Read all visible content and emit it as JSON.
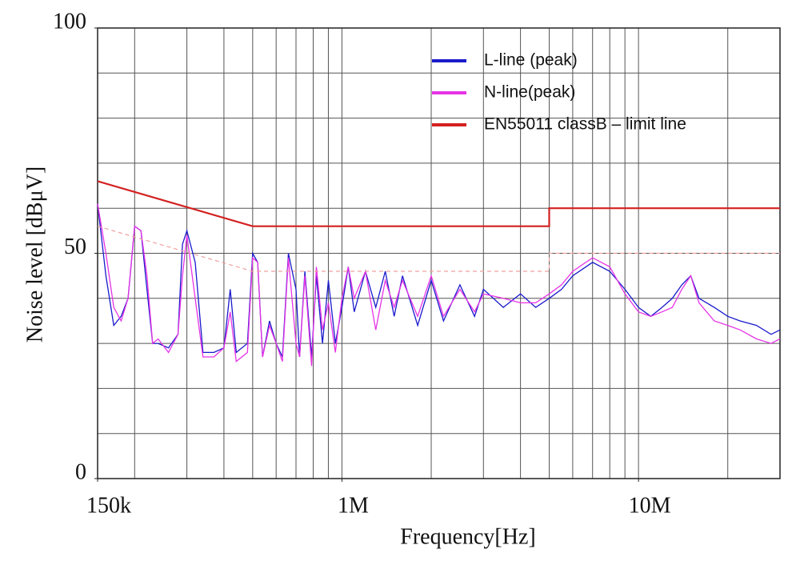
{
  "chart_data": {
    "type": "line",
    "xlabel": "Frequency[Hz]",
    "ylabel": "Noise level [dBμV]",
    "xscale": "log",
    "xlim": [
      150000,
      30000000
    ],
    "ylim": [
      0,
      100
    ],
    "xticks": [
      {
        "value": 150000,
        "label": "150k"
      },
      {
        "value": 1000000,
        "label": "1M"
      },
      {
        "value": 10000000,
        "label": "10M"
      }
    ],
    "yticks": [
      0,
      50,
      100
    ],
    "xgrid": [
      200000,
      300000,
      400000,
      500000,
      600000,
      700000,
      800000,
      900000,
      1000000,
      2000000,
      3000000,
      4000000,
      5000000,
      6000000,
      7000000,
      8000000,
      9000000,
      10000000,
      20000000,
      30000000
    ],
    "ygrid": [
      10,
      20,
      30,
      40,
      50,
      60,
      70,
      80,
      90,
      100
    ],
    "grid": true,
    "legend": "upper right",
    "series": [
      {
        "name": "L-line (peak)",
        "color": "#1a1acc",
        "x": [
          150000,
          160000,
          170000,
          180000,
          190000,
          200000,
          210000,
          220000,
          230000,
          240000,
          260000,
          280000,
          290000,
          300000,
          320000,
          340000,
          370000,
          400000,
          420000,
          440000,
          480000,
          500000,
          520000,
          540000,
          570000,
          600000,
          630000,
          660000,
          700000,
          720000,
          750000,
          790000,
          820000,
          860000,
          900000,
          950000,
          1000000,
          1050000,
          1100000,
          1200000,
          1300000,
          1400000,
          1500000,
          1600000,
          1800000,
          2000000,
          2200000,
          2500000,
          2800000,
          3000000,
          3500000,
          4000000,
          4500000,
          5000000,
          5500000,
          6000000,
          7000000,
          8000000,
          9000000,
          10000000,
          11000000,
          12000000,
          13000000,
          14000000,
          15000000,
          16000000,
          18000000,
          20000000,
          22000000,
          25000000,
          28000000,
          30000000
        ],
        "values": [
          61,
          45,
          34,
          36,
          40,
          56,
          55,
          42,
          30,
          30,
          29,
          32,
          52,
          55,
          48,
          28,
          28,
          29,
          42,
          28,
          30,
          50,
          48,
          27,
          35,
          30,
          27,
          50,
          42,
          27,
          46,
          27,
          45,
          30,
          44,
          30,
          38,
          47,
          37,
          46,
          38,
          46,
          36,
          45,
          34,
          44,
          35,
          43,
          36,
          42,
          38,
          41,
          38,
          40,
          42,
          45,
          48,
          46,
          42,
          38,
          36,
          38,
          40,
          43,
          45,
          40,
          38,
          36,
          35,
          34,
          32,
          33
        ]
      },
      {
        "name": "N-line(peak)",
        "color": "#e633e6",
        "x": [
          150000,
          160000,
          170000,
          180000,
          190000,
          200000,
          210000,
          220000,
          230000,
          240000,
          260000,
          280000,
          290000,
          300000,
          320000,
          340000,
          370000,
          400000,
          420000,
          440000,
          480000,
          500000,
          520000,
          540000,
          570000,
          600000,
          630000,
          660000,
          700000,
          720000,
          750000,
          790000,
          820000,
          860000,
          900000,
          950000,
          1000000,
          1050000,
          1100000,
          1200000,
          1300000,
          1400000,
          1500000,
          1600000,
          1800000,
          2000000,
          2200000,
          2500000,
          2800000,
          3000000,
          3500000,
          4000000,
          4500000,
          5000000,
          5500000,
          6000000,
          7000000,
          8000000,
          9000000,
          10000000,
          11000000,
          12000000,
          13000000,
          14000000,
          15000000,
          16000000,
          18000000,
          20000000,
          22000000,
          25000000,
          28000000,
          30000000
        ],
        "values": [
          61,
          50,
          38,
          35,
          40,
          56,
          55,
          45,
          30,
          31,
          28,
          32,
          45,
          54,
          40,
          27,
          27,
          29,
          37,
          26,
          28,
          49,
          48,
          27,
          34,
          30,
          26,
          49,
          30,
          27,
          45,
          25,
          47,
          33,
          39,
          28,
          40,
          47,
          40,
          46,
          33,
          44,
          38,
          44,
          36,
          45,
          36,
          42,
          37,
          41,
          40,
          39,
          39,
          41,
          43,
          46,
          49,
          47,
          41,
          37,
          36,
          37,
          38,
          42,
          45,
          39,
          35,
          34,
          33,
          31,
          30,
          31
        ]
      },
      {
        "name": "EN55011 classB – limit line",
        "color": "#d42020",
        "x": [
          150000,
          500000,
          5000000,
          5000000,
          30000000
        ],
        "values": [
          66,
          56,
          56,
          60,
          60
        ]
      },
      {
        "color": "#f0a0a0",
        "dashed": true,
        "x": [
          150000,
          500000,
          5000000,
          5000000,
          30000000
        ],
        "values": [
          56,
          46,
          46,
          50,
          50
        ]
      }
    ]
  }
}
